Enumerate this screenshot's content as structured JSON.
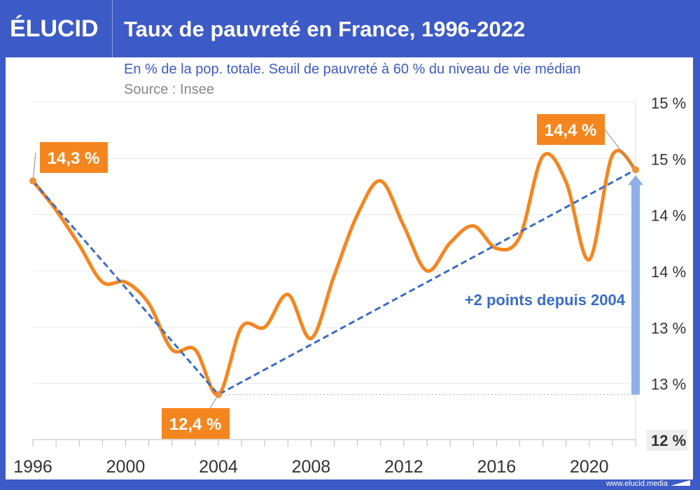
{
  "header": {
    "logo": "ÉLUCID",
    "title": "Taux de pauvreté en France, 1996-2022"
  },
  "subtitle": "En % de la pop. totale. Seuil de pauvreté à 60 % du niveau de vie médian",
  "source": "Source : Insee",
  "footer": "www.elucid.media",
  "colors": {
    "brand": "#3d5bc6",
    "line": "#f5861f",
    "trend": "#3a6cc8",
    "arrow": "#8fb0e6"
  },
  "chart_data": {
    "type": "line",
    "title": "Taux de pauvreté en France, 1996-2022",
    "ylabel": "",
    "xlabel": "",
    "x": [
      1996,
      1997,
      1998,
      1999,
      2000,
      2001,
      2002,
      2003,
      2004,
      2005,
      2006,
      2007,
      2008,
      2009,
      2010,
      2011,
      2012,
      2013,
      2014,
      2015,
      2016,
      2017,
      2018,
      2019,
      2020,
      2021,
      2022
    ],
    "series": [
      {
        "values": [
          14.3,
          14.04,
          13.73,
          13.4,
          13.4,
          13.21,
          12.8,
          12.8,
          12.4,
          13.0,
          13.0,
          13.29,
          12.9,
          13.46,
          14.0,
          14.3,
          13.9,
          13.5,
          13.75,
          13.9,
          13.7,
          13.8,
          14.52,
          14.29,
          13.6,
          14.53,
          14.4
        ]
      }
    ],
    "xlim": [
      1996,
      2022
    ],
    "ylim": [
      12,
      15
    ],
    "yticks": [
      15,
      14.5,
      14,
      13.5,
      13,
      12.5,
      12
    ],
    "ytick_labels": [
      "15 %",
      "15 %",
      "14 %",
      "14 %",
      "13 %",
      "13 %",
      "12 %"
    ],
    "xticks": [
      1996,
      2000,
      2004,
      2008,
      2012,
      2016,
      2020
    ],
    "xtick_labels": [
      "1996",
      "2000",
      "2004",
      "2008",
      "2012",
      "2016",
      "2020"
    ],
    "grid": true,
    "axis_side": "right",
    "annotations": [
      {
        "x": 1996,
        "y": 14.3,
        "text": "14,3 %"
      },
      {
        "x": 2004,
        "y": 12.4,
        "text": "12,4 %"
      },
      {
        "x": 2022,
        "y": 14.4,
        "text": "14,4 %"
      },
      {
        "text": "+2 points depuis 2004"
      }
    ],
    "trend_lines": [
      [
        1996,
        14.3
      ],
      [
        2004,
        12.4
      ],
      [
        2022,
        14.4
      ]
    ]
  }
}
